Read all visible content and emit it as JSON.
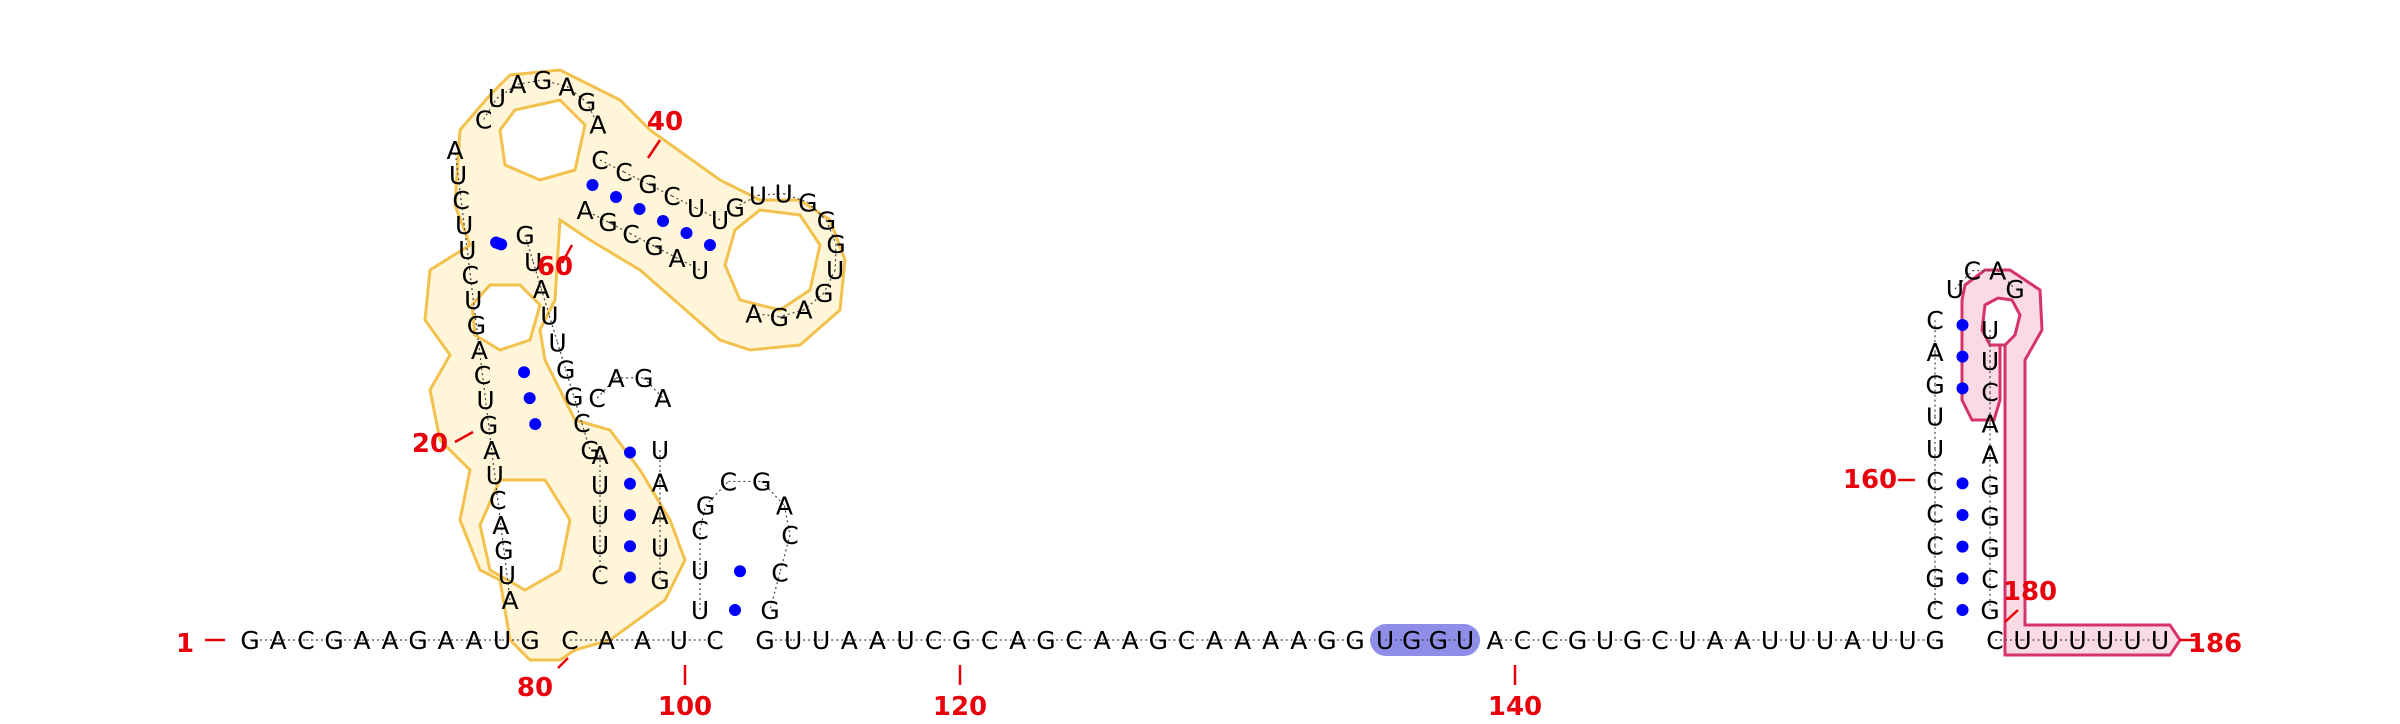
{
  "diagram": {
    "colors": {
      "nucleotide": "#000000",
      "base_pair_dot": "#0000ff",
      "position_label": "#e8000b",
      "yellow_outline": "#f2c14e",
      "yellow_fill": "#fff6da",
      "pink_outline": "#d6336c",
      "pink_fill": "#fadbe3",
      "blue_highlight": "#8e8ee8"
    },
    "position_labels": [
      "1",
      "20",
      "40",
      "60",
      "80",
      "100",
      "120",
      "140",
      "160",
      "180",
      "186"
    ],
    "strand_5prime": [
      "G",
      "A",
      "C",
      "G",
      "A",
      "A",
      "G",
      "A",
      "A",
      "U",
      "G"
    ],
    "stem_left": [
      "A",
      "U",
      "G",
      "A",
      "C",
      "U",
      "A",
      "G",
      "U",
      "C",
      "A",
      "G",
      "U",
      "C",
      "U",
      "U",
      "C",
      "U",
      "A"
    ],
    "loop_top": [
      "C",
      "U",
      "A",
      "G",
      "A",
      "G",
      "A"
    ],
    "arm_upper": [
      "C",
      "C",
      "G",
      "C",
      "U",
      "U"
    ],
    "loop_right": [
      "G",
      "U",
      "U",
      "G",
      "G",
      "G",
      "U",
      "G",
      "A",
      "G",
      "A"
    ],
    "arm_lower": [
      "U",
      "A",
      "G",
      "C",
      "G",
      "A"
    ],
    "stem_inner": [
      "G",
      "U",
      "A",
      "U",
      "U",
      "G",
      "G",
      "C",
      "G"
    ],
    "hairpin_small_left": [
      "A",
      "U",
      "U",
      "U",
      "C"
    ],
    "hairpin_small_loop": [
      "C",
      "A",
      "G",
      "A"
    ],
    "hairpin_small_right": [
      "U",
      "A",
      "A",
      "U",
      "G"
    ],
    "junction": [
      "C",
      "A",
      "A",
      "U",
      "C"
    ],
    "hairpin_tiny": [
      "U",
      "U",
      "C",
      "G",
      "C",
      "G",
      "A",
      "C",
      "C",
      "G"
    ],
    "linker": [
      "G",
      "U",
      "U",
      "A",
      "A",
      "U",
      "C",
      "G",
      "C",
      "A",
      "G",
      "C",
      "A",
      "A",
      "G",
      "C",
      "A",
      "A",
      "A",
      "A",
      "G",
      "G"
    ],
    "highlight_seq": [
      "U",
      "G",
      "G",
      "U"
    ],
    "linker2": [
      "A",
      "C",
      "C",
      "G",
      "U",
      "G",
      "C",
      "U",
      "A",
      "A",
      "U",
      "U",
      "U",
      "A",
      "U",
      "U",
      "G"
    ],
    "stem3_left": [
      "C",
      "G",
      "C",
      "C",
      "C",
      "U",
      "U",
      "G",
      "A",
      "C"
    ],
    "stem3_loop": [
      "U",
      "C",
      "A",
      "G"
    ],
    "stem3_right": [
      "U",
      "U",
      "C",
      "A",
      "A",
      "G",
      "G",
      "G",
      "C",
      "G"
    ],
    "tail_3prime": [
      "C",
      "U",
      "U",
      "U",
      "U",
      "U",
      "U"
    ]
  }
}
